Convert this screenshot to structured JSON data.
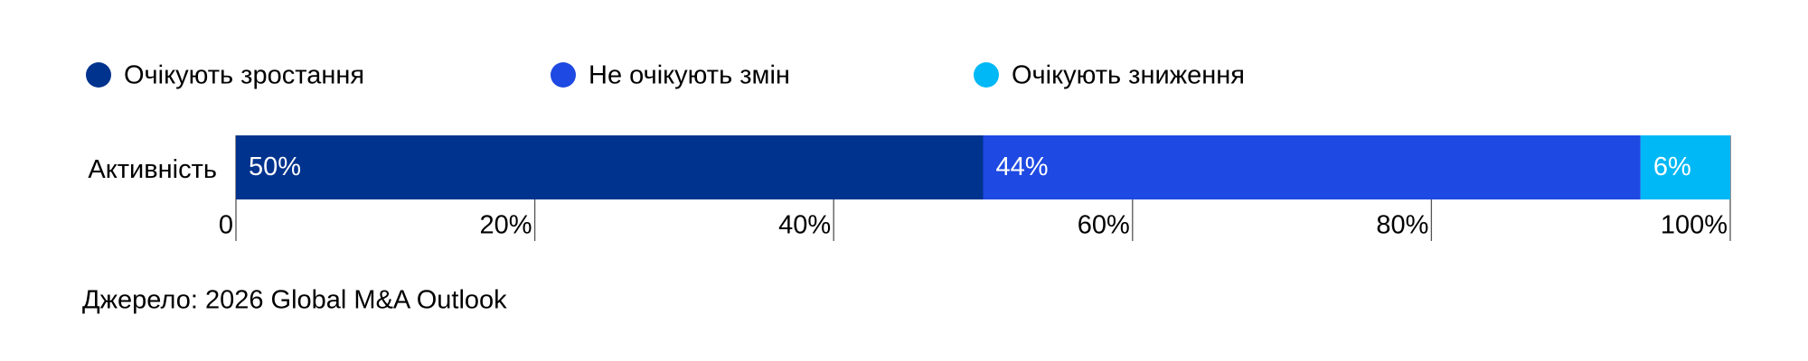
{
  "chart_data": {
    "type": "stacked-bar-horizontal",
    "categories": [
      "Активність"
    ],
    "series": [
      {
        "name": "Очікують зростання",
        "color": "#00338d",
        "values": [
          50
        ],
        "value_labels": [
          "50%"
        ]
      },
      {
        "name": "Не очікують змін",
        "color": "#1e49e2",
        "values": [
          44
        ],
        "value_labels": [
          "44%"
        ]
      },
      {
        "name": "Очікують зниження",
        "color": "#00b8f5",
        "values": [
          6
        ],
        "value_labels": [
          "6%"
        ]
      }
    ],
    "xlim": [
      0,
      100
    ],
    "xticks": [
      0,
      {
        "value": 20,
        "label": "20%"
      },
      {
        "value": 40,
        "label": "40%"
      },
      {
        "value": 60,
        "label": "60%"
      },
      {
        "value": 80,
        "label": "80%"
      },
      {
        "value": 100,
        "label": "100%"
      }
    ],
    "source": "Джерело: 2026 Global M&A Outlook"
  }
}
